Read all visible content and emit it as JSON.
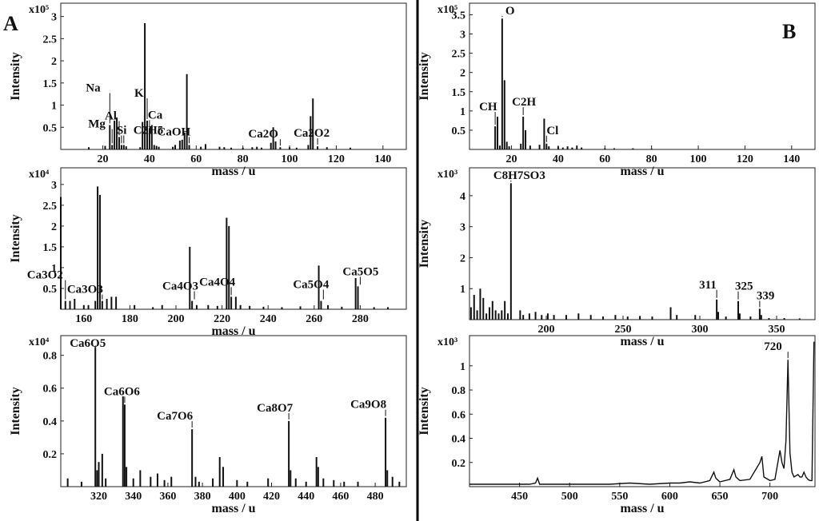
{
  "panels": {
    "A": "A",
    "B": "B"
  },
  "chart_data": [
    {
      "type": "bar",
      "ylabel": "Intensity",
      "xlabel": "mass / u",
      "yscale_label": "x10⁵",
      "xlim": [
        2,
        150
      ],
      "ylim": [
        0,
        3.3
      ],
      "xticks": [
        20,
        40,
        60,
        80,
        100,
        120,
        140
      ],
      "yticks": [
        0.5,
        1.0,
        1.5,
        2.0,
        2.5,
        3.0
      ],
      "series": [
        {
          "x": [
            14,
            21,
            23,
            24,
            25,
            26,
            27,
            28,
            29,
            30,
            36,
            37,
            38,
            39,
            40,
            41,
            42,
            43,
            44,
            50,
            51,
            53,
            54,
            55,
            56,
            57,
            62,
            64,
            70,
            72,
            75,
            80,
            84,
            86,
            88,
            92,
            93,
            94,
            96,
            100,
            103,
            108,
            109,
            110,
            112,
            116,
            126
          ],
          "values": [
            0.05,
            0.08,
            0.55,
            0.1,
            0.65,
            0.72,
            0.28,
            0.1,
            0.1,
            0.07,
            0.05,
            0.62,
            2.85,
            0.65,
            0.48,
            0.55,
            0.1,
            0.08,
            0.06,
            0.06,
            0.1,
            0.2,
            0.22,
            0.38,
            1.7,
            0.1,
            0.06,
            0.12,
            0.06,
            0.05,
            0.04,
            0.04,
            0.05,
            0.06,
            0.04,
            0.15,
            0.5,
            0.18,
            0.05,
            0.05,
            0.04,
            0.1,
            0.75,
            1.15,
            0.07,
            0.05,
            0.04
          ]
        }
      ],
      "annotations": [
        {
          "text": "Ca",
          "x": 40
        },
        {
          "text": "CaOH",
          "x": 57
        },
        {
          "text": "Mg",
          "x": 24
        },
        {
          "text": "Na",
          "x": 23
        },
        {
          "text": "Al",
          "x": 27
        },
        {
          "text": "Si",
          "x": 28
        },
        {
          "text": "C2H5",
          "x": 29
        },
        {
          "text": "K",
          "x": 39
        },
        {
          "text": "Ca2O",
          "x": 96
        },
        {
          "text": "Ca2O2",
          "x": 112
        }
      ]
    },
    {
      "type": "bar",
      "ylabel": "Intensity",
      "xlabel": "mass / u",
      "yscale_label": "x10⁴",
      "xlim": [
        150,
        300
      ],
      "ylim": [
        0,
        3.4
      ],
      "xticks": [
        160,
        180,
        200,
        220,
        240,
        260,
        280
      ],
      "yticks": [
        0.5,
        1.0,
        1.5,
        2.0,
        2.5,
        3.0
      ],
      "series": [
        {
          "x": [
            150,
            152,
            154,
            156,
            160,
            162,
            165,
            166,
            167,
            168,
            170,
            172,
            174,
            182,
            190,
            194,
            206,
            207,
            209,
            214,
            218,
            222,
            223,
            224,
            226,
            228,
            232,
            238,
            246,
            254,
            262,
            263,
            266,
            272,
            278,
            279,
            286,
            292
          ],
          "values": [
            2.7,
            0.2,
            0.2,
            0.25,
            0.1,
            0.1,
            0.2,
            2.95,
            2.75,
            0.2,
            0.25,
            0.3,
            0.3,
            0.1,
            0.05,
            0.1,
            1.5,
            0.2,
            0.1,
            0.1,
            0.08,
            2.2,
            2.0,
            0.3,
            0.3,
            0.1,
            0.08,
            0.06,
            0.05,
            0.07,
            1.05,
            0.2,
            0.1,
            0.06,
            0.75,
            0.55,
            0.05,
            0.05
          ]
        }
      ],
      "annotations": [
        {
          "text": "Ca3O3",
          "x": 168
        },
        {
          "text": "Ca3O2",
          "x": 152
        },
        {
          "text": "Ca4O3",
          "x": 208
        },
        {
          "text": "Ca4O4",
          "x": 224
        },
        {
          "text": "Ca5O4",
          "x": 264
        },
        {
          "text": "Ca5O5",
          "x": 280
        }
      ]
    },
    {
      "type": "bar",
      "ylabel": "Intensity",
      "xlabel": "mass / u",
      "yscale_label": "x10⁴",
      "xlim": [
        298,
        498
      ],
      "ylim": [
        0,
        0.92
      ],
      "xticks": [
        320,
        340,
        360,
        380,
        400,
        420,
        440,
        460,
        480
      ],
      "yticks": [
        0.2,
        0.4,
        0.6,
        0.8
      ],
      "series": [
        {
          "x": [
            302,
            310,
            318,
            319,
            320,
            322,
            324,
            334,
            335,
            336,
            340,
            344,
            350,
            354,
            358,
            362,
            374,
            376,
            378,
            386,
            390,
            392,
            400,
            406,
            418,
            430,
            431,
            434,
            440,
            446,
            447,
            450,
            456,
            462,
            470,
            486,
            487,
            490,
            494
          ],
          "values": [
            0.05,
            0.03,
            0.85,
            0.1,
            0.15,
            0.2,
            0.05,
            0.55,
            0.5,
            0.12,
            0.05,
            0.1,
            0.06,
            0.08,
            0.04,
            0.06,
            0.35,
            0.06,
            0.03,
            0.05,
            0.18,
            0.12,
            0.04,
            0.03,
            0.05,
            0.4,
            0.1,
            0.05,
            0.03,
            0.18,
            0.12,
            0.05,
            0.04,
            0.03,
            0.03,
            0.42,
            0.1,
            0.06,
            0.03
          ]
        }
      ],
      "annotations": [
        {
          "text": "Ca6O5",
          "x": 318
        },
        {
          "text": "Ca6O6",
          "x": 335
        },
        {
          "text": "Ca7O6",
          "x": 374
        },
        {
          "text": "Ca8O7",
          "x": 430
        },
        {
          "text": "Ca9O8",
          "x": 486
        }
      ]
    },
    {
      "type": "bar",
      "ylabel": "Intensity",
      "xlabel": "mass / u",
      "yscale_label": "x10⁵",
      "xlim": [
        2,
        150
      ],
      "ylim": [
        0,
        3.8
      ],
      "xticks": [
        20,
        40,
        60,
        80,
        100,
        120,
        140
      ],
      "yticks": [
        0.5,
        1.0,
        1.5,
        2.0,
        2.5,
        3.0,
        3.5
      ],
      "series": [
        {
          "x": [
            13,
            14,
            15,
            16,
            17,
            18,
            19,
            24,
            25,
            26,
            28,
            32,
            34,
            35,
            36,
            40,
            42,
            44,
            46,
            48,
            50,
            60,
            64,
            72,
            80
          ],
          "values": [
            0.6,
            0.85,
            0.1,
            3.4,
            1.8,
            0.2,
            0.08,
            0.15,
            0.85,
            0.5,
            0.1,
            0.12,
            0.8,
            0.15,
            0.08,
            0.08,
            0.05,
            0.08,
            0.05,
            0.1,
            0.05,
            0.03,
            0.03,
            0.03,
            0.02
          ]
        }
      ],
      "annotations": [
        {
          "text": "O",
          "x": 16
        },
        {
          "text": "CH",
          "x": 13
        },
        {
          "text": "C2H",
          "x": 25
        },
        {
          "text": "Cl",
          "x": 35
        }
      ]
    },
    {
      "type": "bar",
      "ylabel": "Intensity",
      "xlabel": "mass / u",
      "yscale_label": "x10³",
      "xlim": [
        150,
        375
      ],
      "ylim": [
        0,
        4.9
      ],
      "xticks": [
        200,
        250,
        300,
        350
      ],
      "yticks": [
        1.0,
        2.0,
        3.0,
        4.0
      ],
      "series": [
        {
          "x": [
            151,
            153,
            155,
            157,
            159,
            161,
            163,
            165,
            167,
            169,
            171,
            173,
            175,
            177,
            183,
            185,
            189,
            193,
            197,
            201,
            205,
            213,
            221,
            229,
            237,
            245,
            253,
            261,
            269,
            281,
            285,
            297,
            311,
            312,
            317,
            325,
            326,
            333,
            339,
            340,
            345,
            355,
            365
          ],
          "values": [
            0.4,
            0.8,
            0.3,
            1.0,
            0.7,
            0.2,
            0.4,
            0.6,
            0.3,
            0.2,
            0.3,
            0.6,
            0.2,
            4.4,
            0.3,
            0.15,
            0.2,
            0.25,
            0.15,
            0.2,
            0.15,
            0.15,
            0.2,
            0.15,
            0.1,
            0.15,
            0.1,
            0.12,
            0.1,
            0.4,
            0.15,
            0.15,
            0.65,
            0.25,
            0.1,
            0.6,
            0.2,
            0.1,
            0.35,
            0.15,
            0.05,
            0.05,
            0.04
          ]
        }
      ],
      "annotations": [
        {
          "text": "C8H7SO3",
          "x": 177
        },
        {
          "text": "311",
          "x": 311
        },
        {
          "text": "325",
          "x": 325
        },
        {
          "text": "339",
          "x": 339
        }
      ]
    },
    {
      "type": "line",
      "ylabel": "Intensity",
      "xlabel": "mass / u",
      "yscale_label": "x10³",
      "xlim": [
        400,
        745
      ],
      "ylim": [
        0,
        1.25
      ],
      "xticks": [
        450,
        500,
        550,
        600,
        650,
        700
      ],
      "yticks": [
        0.2,
        0.4,
        0.6,
        0.8,
        1.0
      ],
      "series": [
        {
          "x": [
            400,
            420,
            440,
            460,
            466,
            468,
            470,
            480,
            500,
            520,
            540,
            560,
            580,
            600,
            610,
            620,
            630,
            640,
            644,
            646,
            650,
            660,
            664,
            666,
            670,
            680,
            690,
            692,
            694,
            700,
            705,
            710,
            712,
            714,
            716,
            718,
            720,
            722,
            724,
            728,
            730,
            732,
            734,
            736,
            738,
            740,
            742,
            744
          ],
          "values": [
            0.02,
            0.02,
            0.02,
            0.02,
            0.03,
            0.07,
            0.02,
            0.02,
            0.02,
            0.02,
            0.02,
            0.03,
            0.02,
            0.03,
            0.03,
            0.04,
            0.03,
            0.05,
            0.12,
            0.07,
            0.04,
            0.06,
            0.14,
            0.08,
            0.05,
            0.06,
            0.2,
            0.25,
            0.08,
            0.05,
            0.06,
            0.3,
            0.2,
            0.15,
            0.38,
            1.05,
            0.28,
            0.12,
            0.08,
            0.1,
            0.08,
            0.08,
            0.12,
            0.08,
            0.06,
            0.05,
            0.05,
            1.2
          ]
        }
      ],
      "annotations": [
        {
          "text": "720",
          "x": 718
        }
      ]
    }
  ]
}
